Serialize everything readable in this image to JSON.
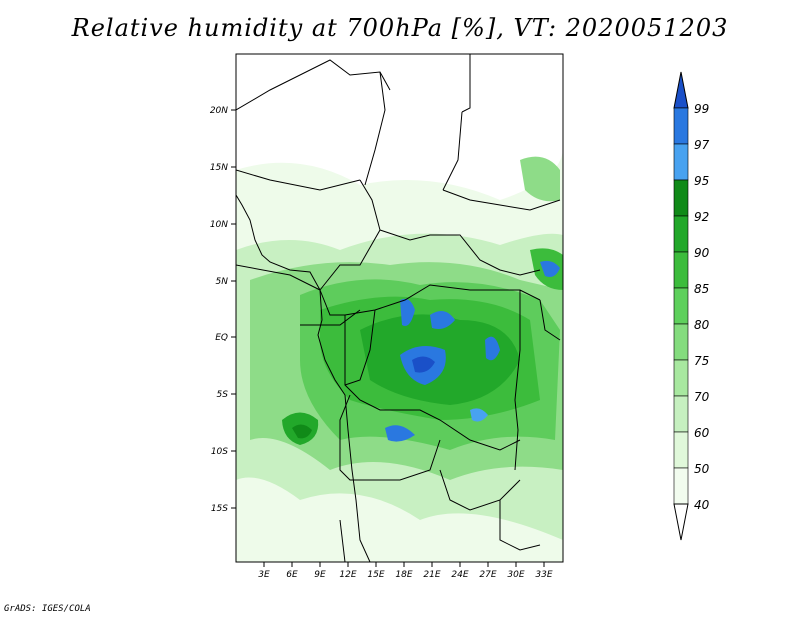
{
  "title": "Relative humidity at 700hPa [%], VT: 2020051203",
  "x_axis": {
    "ticks": [
      "3E",
      "6E",
      "9E",
      "12E",
      "15E",
      "18E",
      "21E",
      "24E",
      "27E",
      "30E",
      "33E"
    ],
    "range_deg": [
      0,
      35
    ]
  },
  "y_axis": {
    "ticks": [
      "20N",
      "15N",
      "10N",
      "5N",
      "EQ",
      "5S",
      "10S",
      "15S"
    ],
    "range_deg": [
      -20,
      25
    ]
  },
  "colorbar": {
    "levels": [
      "99",
      "97",
      "95",
      "92",
      "90",
      "85",
      "80",
      "75",
      "70",
      "60",
      "50",
      "40"
    ],
    "colors": [
      "#1a50c8",
      "#2a78e0",
      "#48a2f0",
      "#108a18",
      "#22a82a",
      "#3cbc3c",
      "#5ed05c",
      "#84dc7e",
      "#a8e8a0",
      "#c6f0c0",
      "#e0f8da",
      "#f2fcef"
    ],
    "over_color": "#1a50c8",
    "under_color": "#ffffff"
  },
  "credit": "GrADS: IGES/COLA"
}
